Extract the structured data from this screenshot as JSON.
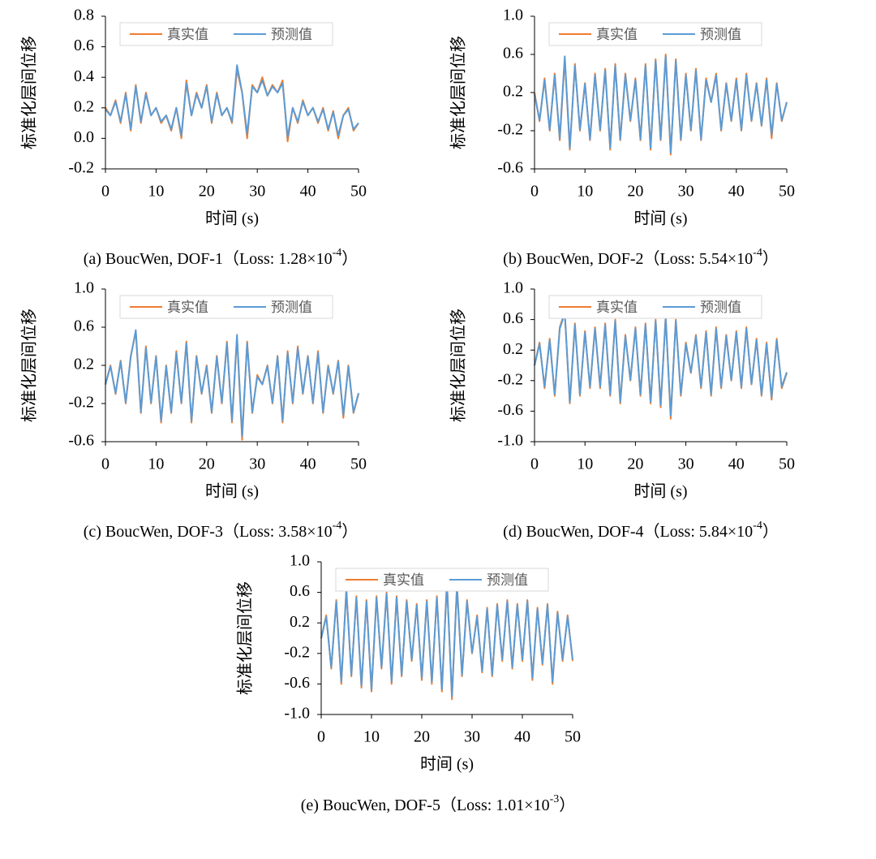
{
  "chart_data": [
    {
      "type": "line",
      "y_label": "标准化层间位移",
      "x_label": "时间 (s)",
      "caption": {
        "prefix": "(a) BoucWen, DOF-1（Loss: 1.28×10",
        "exponent": "-4",
        "suffix": "）"
      },
      "x": [
        0,
        1,
        2,
        3,
        4,
        5,
        6,
        7,
        8,
        9,
        10,
        11,
        12,
        13,
        14,
        15,
        16,
        17,
        18,
        19,
        20,
        21,
        22,
        23,
        24,
        25,
        26,
        27,
        28,
        29,
        30,
        31,
        32,
        33,
        34,
        35,
        36,
        37,
        38,
        39,
        40,
        41,
        42,
        43,
        44,
        45,
        46,
        47,
        48,
        49,
        50
      ],
      "series": [
        {
          "name": "真实值",
          "color": "#ed7d31",
          "values": [
            0.2,
            0.15,
            0.25,
            0.1,
            0.3,
            0.05,
            0.35,
            0.1,
            0.3,
            0.15,
            0.2,
            0.1,
            0.15,
            0.05,
            0.2,
            0.0,
            0.38,
            0.15,
            0.3,
            0.2,
            0.35,
            0.1,
            0.3,
            0.15,
            0.2,
            0.1,
            0.45,
            0.3,
            0.0,
            0.35,
            0.3,
            0.4,
            0.28,
            0.35,
            0.3,
            0.38,
            -0.02,
            0.2,
            0.1,
            0.25,
            0.15,
            0.2,
            0.1,
            0.2,
            0.05,
            0.18,
            0.0,
            0.15,
            0.2,
            0.05,
            0.1
          ]
        },
        {
          "name": "预测值",
          "color": "#5b9bd5",
          "values": [
            0.19,
            0.15,
            0.24,
            0.11,
            0.29,
            0.06,
            0.34,
            0.11,
            0.29,
            0.15,
            0.2,
            0.11,
            0.15,
            0.06,
            0.2,
            0.02,
            0.36,
            0.15,
            0.29,
            0.2,
            0.34,
            0.11,
            0.29,
            0.15,
            0.2,
            0.11,
            0.48,
            0.3,
            0.03,
            0.34,
            0.3,
            0.38,
            0.28,
            0.34,
            0.3,
            0.36,
            0.01,
            0.2,
            0.11,
            0.24,
            0.15,
            0.2,
            0.11,
            0.19,
            0.06,
            0.17,
            0.02,
            0.15,
            0.19,
            0.06,
            0.1
          ]
        }
      ],
      "xlim": [
        0,
        50
      ],
      "xticks": [
        0,
        10,
        20,
        30,
        40,
        50
      ],
      "ylim": [
        -0.2,
        0.8
      ],
      "yticks": [
        -0.2,
        {
          "value": 0,
          "label": "0.0"
        },
        0.2,
        0.4,
        0.6,
        0.8
      ],
      "legend": "top"
    },
    {
      "type": "line",
      "y_label": "标准化层间位移",
      "x_label": "时间 (s)",
      "caption": {
        "prefix": "(b) BoucWen, DOF-2（Loss: 5.54×10",
        "exponent": "-4",
        "suffix": "）"
      },
      "x": [
        0,
        1,
        2,
        3,
        4,
        5,
        6,
        7,
        8,
        9,
        10,
        11,
        12,
        13,
        14,
        15,
        16,
        17,
        18,
        19,
        20,
        21,
        22,
        23,
        24,
        25,
        26,
        27,
        28,
        29,
        30,
        31,
        32,
        33,
        34,
        35,
        36,
        37,
        38,
        39,
        40,
        41,
        42,
        43,
        44,
        45,
        46,
        47,
        48,
        49,
        50
      ],
      "series": [
        {
          "name": "真实值",
          "color": "#ed7d31",
          "values": [
            0.2,
            -0.1,
            0.35,
            -0.2,
            0.4,
            -0.3,
            0.55,
            -0.4,
            0.5,
            -0.2,
            0.3,
            -0.3,
            0.4,
            -0.2,
            0.45,
            -0.4,
            0.5,
            -0.3,
            0.4,
            -0.1,
            0.35,
            -0.3,
            0.5,
            -0.4,
            0.55,
            -0.3,
            0.6,
            -0.45,
            0.55,
            -0.3,
            0.4,
            -0.2,
            0.45,
            -0.3,
            0.35,
            0.1,
            0.4,
            -0.2,
            0.3,
            -0.1,
            0.35,
            -0.2,
            0.4,
            -0.1,
            0.3,
            -0.15,
            0.35,
            -0.28,
            0.3,
            -0.1,
            0.1
          ]
        },
        {
          "name": "预测值",
          "color": "#5b9bd5",
          "values": [
            0.18,
            -0.09,
            0.33,
            -0.19,
            0.38,
            -0.28,
            0.58,
            -0.38,
            0.48,
            -0.19,
            0.29,
            -0.29,
            0.38,
            -0.19,
            0.43,
            -0.38,
            0.48,
            -0.29,
            0.38,
            -0.09,
            0.33,
            -0.29,
            0.48,
            -0.38,
            0.53,
            -0.29,
            0.58,
            -0.43,
            0.53,
            -0.29,
            0.38,
            -0.19,
            0.43,
            -0.29,
            0.33,
            0.1,
            0.38,
            -0.19,
            0.29,
            -0.09,
            0.33,
            -0.19,
            0.38,
            -0.09,
            0.29,
            -0.14,
            0.33,
            -0.24,
            0.29,
            -0.09,
            0.1
          ]
        }
      ],
      "xlim": [
        0,
        50
      ],
      "xticks": [
        0,
        10,
        20,
        30,
        40,
        50
      ],
      "ylim": [
        -0.6,
        1.0
      ],
      "yticks": [
        -0.6,
        -0.2,
        0.2,
        0.6,
        {
          "value": 1,
          "label": "1.0"
        }
      ],
      "legend": "top"
    },
    {
      "type": "line",
      "y_label": "标准化层间位移",
      "x_label": "时间 (s)",
      "caption": {
        "prefix": "(c) BoucWen, DOF-3（Loss: 3.58×10",
        "exponent": "-4",
        "suffix": "）"
      },
      "x": [
        0,
        1,
        2,
        3,
        4,
        5,
        6,
        7,
        8,
        9,
        10,
        11,
        12,
        13,
        14,
        15,
        16,
        17,
        18,
        19,
        20,
        21,
        22,
        23,
        24,
        25,
        26,
        27,
        28,
        29,
        30,
        31,
        32,
        33,
        34,
        35,
        36,
        37,
        38,
        39,
        40,
        41,
        42,
        43,
        44,
        45,
        46,
        47,
        48,
        49,
        50
      ],
      "series": [
        {
          "name": "真实值",
          "color": "#ed7d31",
          "values": [
            0.0,
            0.2,
            -0.1,
            0.25,
            -0.2,
            0.3,
            0.55,
            -0.3,
            0.4,
            -0.2,
            0.3,
            -0.4,
            0.2,
            -0.3,
            0.35,
            -0.2,
            0.45,
            -0.4,
            0.3,
            -0.1,
            0.2,
            -0.3,
            0.3,
            -0.2,
            0.45,
            -0.4,
            0.5,
            -0.58,
            0.45,
            -0.3,
            0.1,
            0.0,
            0.2,
            -0.2,
            0.3,
            -0.4,
            0.35,
            -0.2,
            0.4,
            -0.1,
            0.3,
            -0.2,
            0.35,
            -0.3,
            0.2,
            -0.1,
            0.25,
            -0.35,
            0.2,
            -0.3,
            -0.1
          ]
        },
        {
          "name": "预测值",
          "color": "#5b9bd5",
          "values": [
            0.0,
            0.19,
            -0.09,
            0.24,
            -0.19,
            0.29,
            0.57,
            -0.29,
            0.38,
            -0.19,
            0.29,
            -0.38,
            0.19,
            -0.29,
            0.33,
            -0.19,
            0.43,
            -0.38,
            0.29,
            -0.09,
            0.19,
            -0.29,
            0.29,
            -0.19,
            0.43,
            -0.38,
            0.52,
            -0.54,
            0.43,
            -0.29,
            0.08,
            0.0,
            0.19,
            -0.19,
            0.29,
            -0.38,
            0.33,
            -0.19,
            0.38,
            -0.09,
            0.29,
            -0.19,
            0.33,
            -0.29,
            0.19,
            -0.09,
            0.24,
            -0.32,
            0.19,
            -0.29,
            -0.09
          ]
        }
      ],
      "xlim": [
        0,
        50
      ],
      "xticks": [
        0,
        10,
        20,
        30,
        40,
        50
      ],
      "ylim": [
        -0.6,
        1.0
      ],
      "yticks": [
        -0.6,
        -0.2,
        0.2,
        0.6,
        {
          "value": 1,
          "label": "1.0"
        }
      ],
      "legend": "top"
    },
    {
      "type": "line",
      "y_label": "标准化层间位移",
      "x_label": "时间 (s)",
      "caption": {
        "prefix": "(d) BoucWen, DOF-4（Loss: 5.84×10",
        "exponent": "-4",
        "suffix": "）"
      },
      "x": [
        0,
        1,
        2,
        3,
        4,
        5,
        6,
        7,
        8,
        9,
        10,
        11,
        12,
        13,
        14,
        15,
        16,
        17,
        18,
        19,
        20,
        21,
        22,
        23,
        24,
        25,
        26,
        27,
        28,
        29,
        30,
        31,
        32,
        33,
        34,
        35,
        36,
        37,
        38,
        39,
        40,
        41,
        42,
        43,
        44,
        45,
        46,
        47,
        48,
        49,
        50
      ],
      "series": [
        {
          "name": "真实值",
          "color": "#ed7d31",
          "values": [
            0.0,
            0.3,
            -0.3,
            0.35,
            -0.4,
            0.5,
            0.7,
            -0.5,
            0.55,
            -0.4,
            0.45,
            -0.3,
            0.5,
            -0.3,
            0.55,
            -0.4,
            0.6,
            -0.5,
            0.4,
            -0.2,
            0.5,
            -0.4,
            0.55,
            -0.5,
            0.6,
            -0.55,
            0.65,
            -0.7,
            0.6,
            -0.4,
            0.3,
            -0.1,
            0.4,
            -0.3,
            0.45,
            -0.4,
            0.5,
            -0.3,
            0.4,
            -0.2,
            0.45,
            -0.3,
            0.5,
            -0.25,
            0.35,
            -0.4,
            0.3,
            -0.45,
            0.35,
            -0.3,
            -0.1
          ]
        },
        {
          "name": "预测值",
          "color": "#5b9bd5",
          "values": [
            0.0,
            0.28,
            -0.28,
            0.33,
            -0.38,
            0.48,
            0.68,
            -0.48,
            0.53,
            -0.38,
            0.43,
            -0.28,
            0.48,
            -0.28,
            0.53,
            -0.38,
            0.58,
            -0.48,
            0.38,
            -0.19,
            0.48,
            -0.38,
            0.53,
            -0.48,
            0.58,
            -0.52,
            0.62,
            -0.66,
            0.58,
            -0.38,
            0.28,
            -0.09,
            0.38,
            -0.28,
            0.43,
            -0.38,
            0.48,
            -0.28,
            0.38,
            -0.19,
            0.43,
            -0.28,
            0.48,
            -0.24,
            0.33,
            -0.38,
            0.28,
            -0.42,
            0.33,
            -0.28,
            -0.09
          ]
        }
      ],
      "xlim": [
        0,
        50
      ],
      "xticks": [
        0,
        10,
        20,
        30,
        40,
        50
      ],
      "ylim": [
        -1.0,
        1.0
      ],
      "yticks": [
        {
          "value": -1,
          "label": "-1.0"
        },
        -0.6,
        -0.2,
        0.2,
        0.6,
        {
          "value": 1,
          "label": "1.0"
        }
      ],
      "legend": "top"
    },
    {
      "type": "line",
      "y_label": "标准化层间位移",
      "x_label": "时间 (s)",
      "caption": {
        "prefix": "(e) BoucWen, DOF-5（Loss: 1.01×10",
        "exponent": "-3",
        "suffix": "）"
      },
      "x": [
        0,
        1,
        2,
        3,
        4,
        5,
        6,
        7,
        8,
        9,
        10,
        11,
        12,
        13,
        14,
        15,
        16,
        17,
        18,
        19,
        20,
        21,
        22,
        23,
        24,
        25,
        26,
        27,
        28,
        29,
        30,
        31,
        32,
        33,
        34,
        35,
        36,
        37,
        38,
        39,
        40,
        41,
        42,
        43,
        44,
        45,
        46,
        47,
        48,
        49,
        50
      ],
      "series": [
        {
          "name": "真实值",
          "color": "#ed7d31",
          "values": [
            0.0,
            0.3,
            -0.4,
            0.5,
            -0.6,
            0.65,
            -0.5,
            0.55,
            -0.65,
            0.5,
            -0.7,
            0.55,
            -0.4,
            0.6,
            -0.6,
            0.55,
            -0.5,
            0.5,
            -0.3,
            0.45,
            -0.55,
            0.5,
            -0.6,
            0.55,
            -0.7,
            0.75,
            -0.8,
            0.7,
            -0.5,
            0.5,
            -0.2,
            0.3,
            -0.45,
            0.4,
            -0.5,
            0.45,
            -0.3,
            0.5,
            -0.4,
            0.45,
            -0.3,
            0.5,
            -0.55,
            0.4,
            -0.35,
            0.45,
            -0.6,
            0.35,
            -0.3,
            0.3,
            -0.3
          ]
        },
        {
          "name": "预测值",
          "color": "#5b9bd5",
          "values": [
            0.0,
            0.28,
            -0.38,
            0.48,
            -0.57,
            0.62,
            -0.48,
            0.53,
            -0.62,
            0.48,
            -0.67,
            0.53,
            -0.38,
            0.58,
            -0.57,
            0.53,
            -0.48,
            0.48,
            -0.28,
            0.43,
            -0.52,
            0.48,
            -0.57,
            0.53,
            -0.67,
            0.72,
            -0.76,
            0.67,
            -0.48,
            0.48,
            -0.19,
            0.28,
            -0.43,
            0.38,
            -0.48,
            0.43,
            -0.28,
            0.48,
            -0.38,
            0.43,
            -0.28,
            0.48,
            -0.52,
            0.38,
            -0.33,
            0.43,
            -0.57,
            0.33,
            -0.28,
            0.28,
            -0.28
          ]
        }
      ],
      "xlim": [
        0,
        50
      ],
      "xticks": [
        0,
        10,
        20,
        30,
        40,
        50
      ],
      "ylim": [
        -1.0,
        1.0
      ],
      "yticks": [
        {
          "value": -1,
          "label": "-1.0"
        },
        -0.6,
        -0.2,
        0.2,
        0.6,
        {
          "value": 1,
          "label": "1.0"
        }
      ],
      "legend": "top"
    }
  ]
}
